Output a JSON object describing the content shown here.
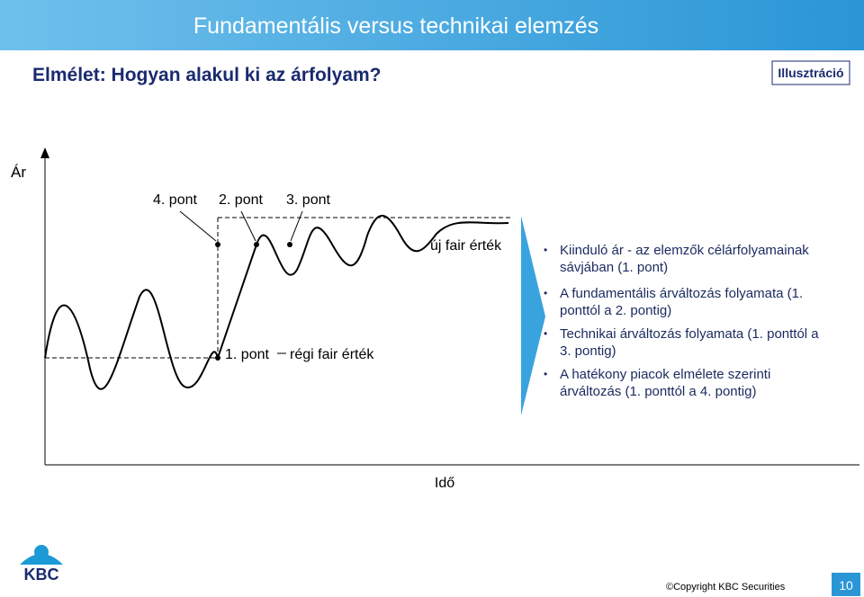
{
  "header": {
    "title": "Fundamentális versus technikai elemzés",
    "subtitle": "Elmélet: Hogyan alakul ki az árfolyam?",
    "badge": "Illusztráció"
  },
  "diagram": {
    "y_axis_label": "Ár",
    "x_axis_label": "Idő",
    "labels": {
      "point4": "4. pont",
      "point2": "2. pont",
      "point3": "3. pont",
      "point1": "1. pont",
      "old_fair": "régi fair érték",
      "new_fair": "új fair érték"
    }
  },
  "bullets": [
    "Kiinduló ár - az elemzők célárfolyamainak sávjában (1. pont)",
    "A fundamentális árváltozás folyamata (1. ponttól a 2. pontig)",
    "Technikai árváltozás folyamata (1. ponttól a 3. pontig)",
    "A hatékony piacok elmélete szerinti árváltozás (1. ponttól a 4. pontig)"
  ],
  "footer": {
    "logo": "KBC",
    "copyright": "©Copyright KBC Securities",
    "page": "10"
  }
}
